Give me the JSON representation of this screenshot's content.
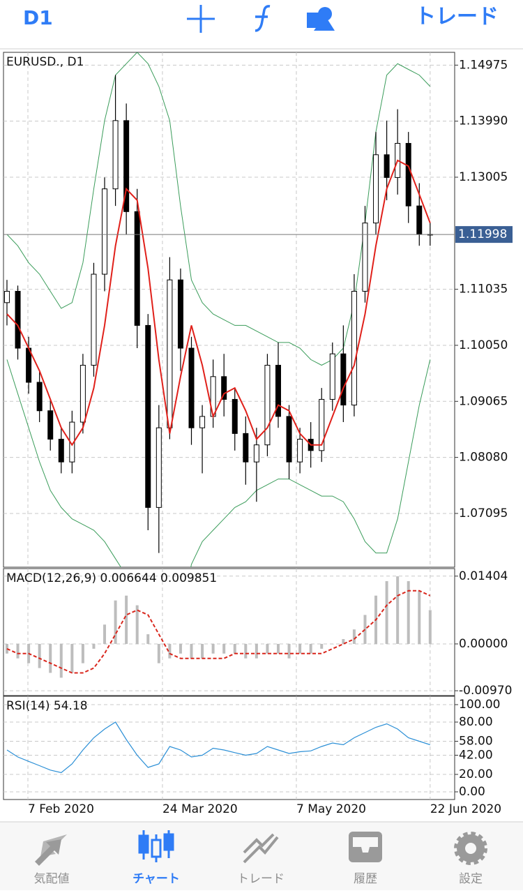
{
  "header": {
    "timeframe": "D1",
    "trade": "トレード"
  },
  "chart_data": [
    {
      "type": "candlestick",
      "title": "EURUSD., D1",
      "open": [
        1.108,
        1.11,
        1.1,
        1.094,
        1.089,
        1.084,
        1.08,
        1.087,
        1.097,
        1.113,
        1.128,
        1.14,
        1.124,
        1.104,
        1.072,
        1.086,
        1.112,
        1.1,
        1.086,
        1.088,
        1.095,
        1.091,
        1.085,
        1.08,
        1.083,
        1.097,
        1.088,
        1.08,
        1.084,
        1.082,
        1.091,
        1.099,
        1.09,
        1.11,
        1.122,
        1.134,
        1.13,
        1.136,
        1.125,
        1.12
      ],
      "high": [
        1.112,
        1.111,
        1.102,
        1.096,
        1.091,
        1.086,
        1.089,
        1.099,
        1.115,
        1.13,
        1.148,
        1.143,
        1.128,
        1.106,
        1.09,
        1.116,
        1.114,
        1.102,
        1.09,
        1.098,
        1.099,
        1.093,
        1.088,
        1.086,
        1.099,
        1.101,
        1.09,
        1.086,
        1.087,
        1.093,
        1.101,
        1.104,
        1.113,
        1.125,
        1.138,
        1.14,
        1.142,
        1.138,
        1.129,
        1.122
      ],
      "low": [
        1.104,
        1.098,
        1.092,
        1.087,
        1.082,
        1.078,
        1.078,
        1.085,
        1.095,
        1.11,
        1.125,
        1.12,
        1.1,
        1.068,
        1.064,
        1.084,
        1.096,
        1.083,
        1.078,
        1.086,
        1.088,
        1.082,
        1.076,
        1.073,
        1.081,
        1.086,
        1.077,
        1.078,
        1.079,
        1.08,
        1.089,
        1.087,
        1.088,
        1.108,
        1.12,
        1.126,
        1.127,
        1.122,
        1.118,
        1.118
      ],
      "close": [
        1.11,
        1.1,
        1.094,
        1.089,
        1.084,
        1.08,
        1.087,
        1.097,
        1.113,
        1.128,
        1.14,
        1.124,
        1.104,
        1.072,
        1.086,
        1.112,
        1.1,
        1.086,
        1.088,
        1.095,
        1.091,
        1.085,
        1.08,
        1.083,
        1.097,
        1.088,
        1.08,
        1.084,
        1.082,
        1.091,
        1.099,
        1.09,
        1.11,
        1.122,
        1.134,
        1.13,
        1.136,
        1.125,
        1.12,
        1.12
      ],
      "ma": [
        1.106,
        1.104,
        1.1,
        1.096,
        1.091,
        1.086,
        1.083,
        1.086,
        1.093,
        1.104,
        1.118,
        1.128,
        1.126,
        1.114,
        1.098,
        1.085,
        1.095,
        1.104,
        1.097,
        1.088,
        1.092,
        1.093,
        1.089,
        1.084,
        1.086,
        1.09,
        1.089,
        1.085,
        1.083,
        1.083,
        1.088,
        1.093,
        1.097,
        1.106,
        1.118,
        1.128,
        1.133,
        1.132,
        1.127,
        1.122
      ],
      "bb_upper": [
        1.12,
        1.118,
        1.115,
        1.113,
        1.11,
        1.107,
        1.108,
        1.115,
        1.128,
        1.14,
        1.148,
        1.15,
        1.152,
        1.15,
        1.146,
        1.14,
        1.125,
        1.112,
        1.108,
        1.106,
        1.105,
        1.104,
        1.104,
        1.103,
        1.102,
        1.101,
        1.101,
        1.1,
        1.098,
        1.097,
        1.098,
        1.1,
        1.108,
        1.122,
        1.138,
        1.148,
        1.15,
        1.149,
        1.148,
        1.146
      ],
      "bb_lower": [
        1.098,
        1.092,
        1.086,
        1.08,
        1.075,
        1.072,
        1.07,
        1.069,
        1.068,
        1.066,
        1.063,
        1.06,
        1.058,
        1.054,
        1.05,
        1.048,
        1.052,
        1.062,
        1.066,
        1.068,
        1.07,
        1.072,
        1.073,
        1.075,
        1.076,
        1.077,
        1.077,
        1.076,
        1.075,
        1.074,
        1.074,
        1.073,
        1.07,
        1.066,
        1.064,
        1.064,
        1.07,
        1.08,
        1.09,
        1.098
      ],
      "current_price": 1.11998,
      "ylim": [
        1.0615,
        1.152
      ],
      "yticks": [
        1.14975,
        {
          "value": 1.1399,
          "label": "1.13990"
        },
        1.13005,
        1.11035,
        {
          "value": 1.1005,
          "label": "1.10050"
        },
        1.09065,
        {
          "value": 1.0808,
          "label": "1.08080"
        },
        1.07095
      ],
      "xlim": [
        -0.32,
        41.26
      ],
      "xticks": [
        {
          "value": 1.93,
          "label": "7 Feb 2020"
        },
        {
          "value": 14.33,
          "label": "24 Mar 2020"
        },
        {
          "value": 26.67,
          "label": "7 May 2020"
        },
        {
          "value": 39,
          "label": "22 Jun 2020"
        }
      ],
      "up_color": "#ffffff",
      "down_color": "#000000",
      "ma_color": "#e0201a",
      "band_color": "#3a9c5a",
      "grid": true
    },
    {
      "type": "macd",
      "title": "MACD(12,26,9) 0.006644 0.009851",
      "histogram": [
        -0.002,
        -0.003,
        -0.004,
        -0.005,
        -0.006,
        -0.007,
        -0.006,
        -0.004,
        -0.001,
        0.004,
        0.009,
        0.01,
        0.008,
        0.002,
        -0.004,
        -0.003,
        -0.002,
        -0.003,
        -0.003,
        -0.002,
        -0.002,
        -0.002,
        -0.003,
        -0.003,
        -0.002,
        -0.002,
        -0.003,
        -0.002,
        -0.002,
        -0.001,
        0.0,
        0.001,
        0.003,
        0.006,
        0.01,
        0.013,
        0.014,
        0.013,
        0.011,
        0.007
      ],
      "signal": [
        -0.001,
        -0.002,
        -0.002,
        -0.003,
        -0.004,
        -0.005,
        -0.006,
        -0.006,
        -0.005,
        -0.002,
        0.002,
        0.006,
        0.007,
        0.006,
        0.002,
        -0.002,
        -0.003,
        -0.003,
        -0.003,
        -0.003,
        -0.003,
        -0.002,
        -0.002,
        -0.002,
        -0.002,
        -0.002,
        -0.002,
        -0.002,
        -0.002,
        -0.002,
        -0.001,
        0.0,
        0.001,
        0.003,
        0.005,
        0.008,
        0.01,
        0.011,
        0.011,
        0.01
      ],
      "ylim": [
        -0.0107,
        0.0156
      ],
      "yticks": [
        0.01404,
        {
          "value": 0,
          "label": "0.00000"
        },
        {
          "value": -0.0097,
          "label": "-0.00970"
        }
      ],
      "histogram_color": "#bdbdbd",
      "signal_color": "#d9261c"
    },
    {
      "type": "rsi",
      "title": "RSI(14) 54.18",
      "values": [
        48,
        40,
        35,
        30,
        25,
        22,
        32,
        48,
        62,
        72,
        80,
        60,
        42,
        28,
        32,
        52,
        48,
        40,
        42,
        50,
        48,
        45,
        42,
        44,
        52,
        48,
        44,
        46,
        47,
        52,
        56,
        54,
        62,
        68,
        74,
        78,
        72,
        62,
        58,
        54
      ],
      "ylim": [
        -8.8,
        109.6
      ],
      "yticks": [
        {
          "value": 100,
          "label": "100.00"
        },
        {
          "value": 80,
          "label": "80.00"
        },
        {
          "value": 58,
          "label": "58.00"
        },
        {
          "value": 42,
          "label": "42.00"
        },
        {
          "value": 20,
          "label": "20.00"
        },
        {
          "value": 0,
          "label": "0.00"
        }
      ],
      "color": "#2b8fd6"
    }
  ],
  "tabs": [
    "気配値",
    "チャート",
    "トレード",
    "履歴",
    "設定"
  ]
}
